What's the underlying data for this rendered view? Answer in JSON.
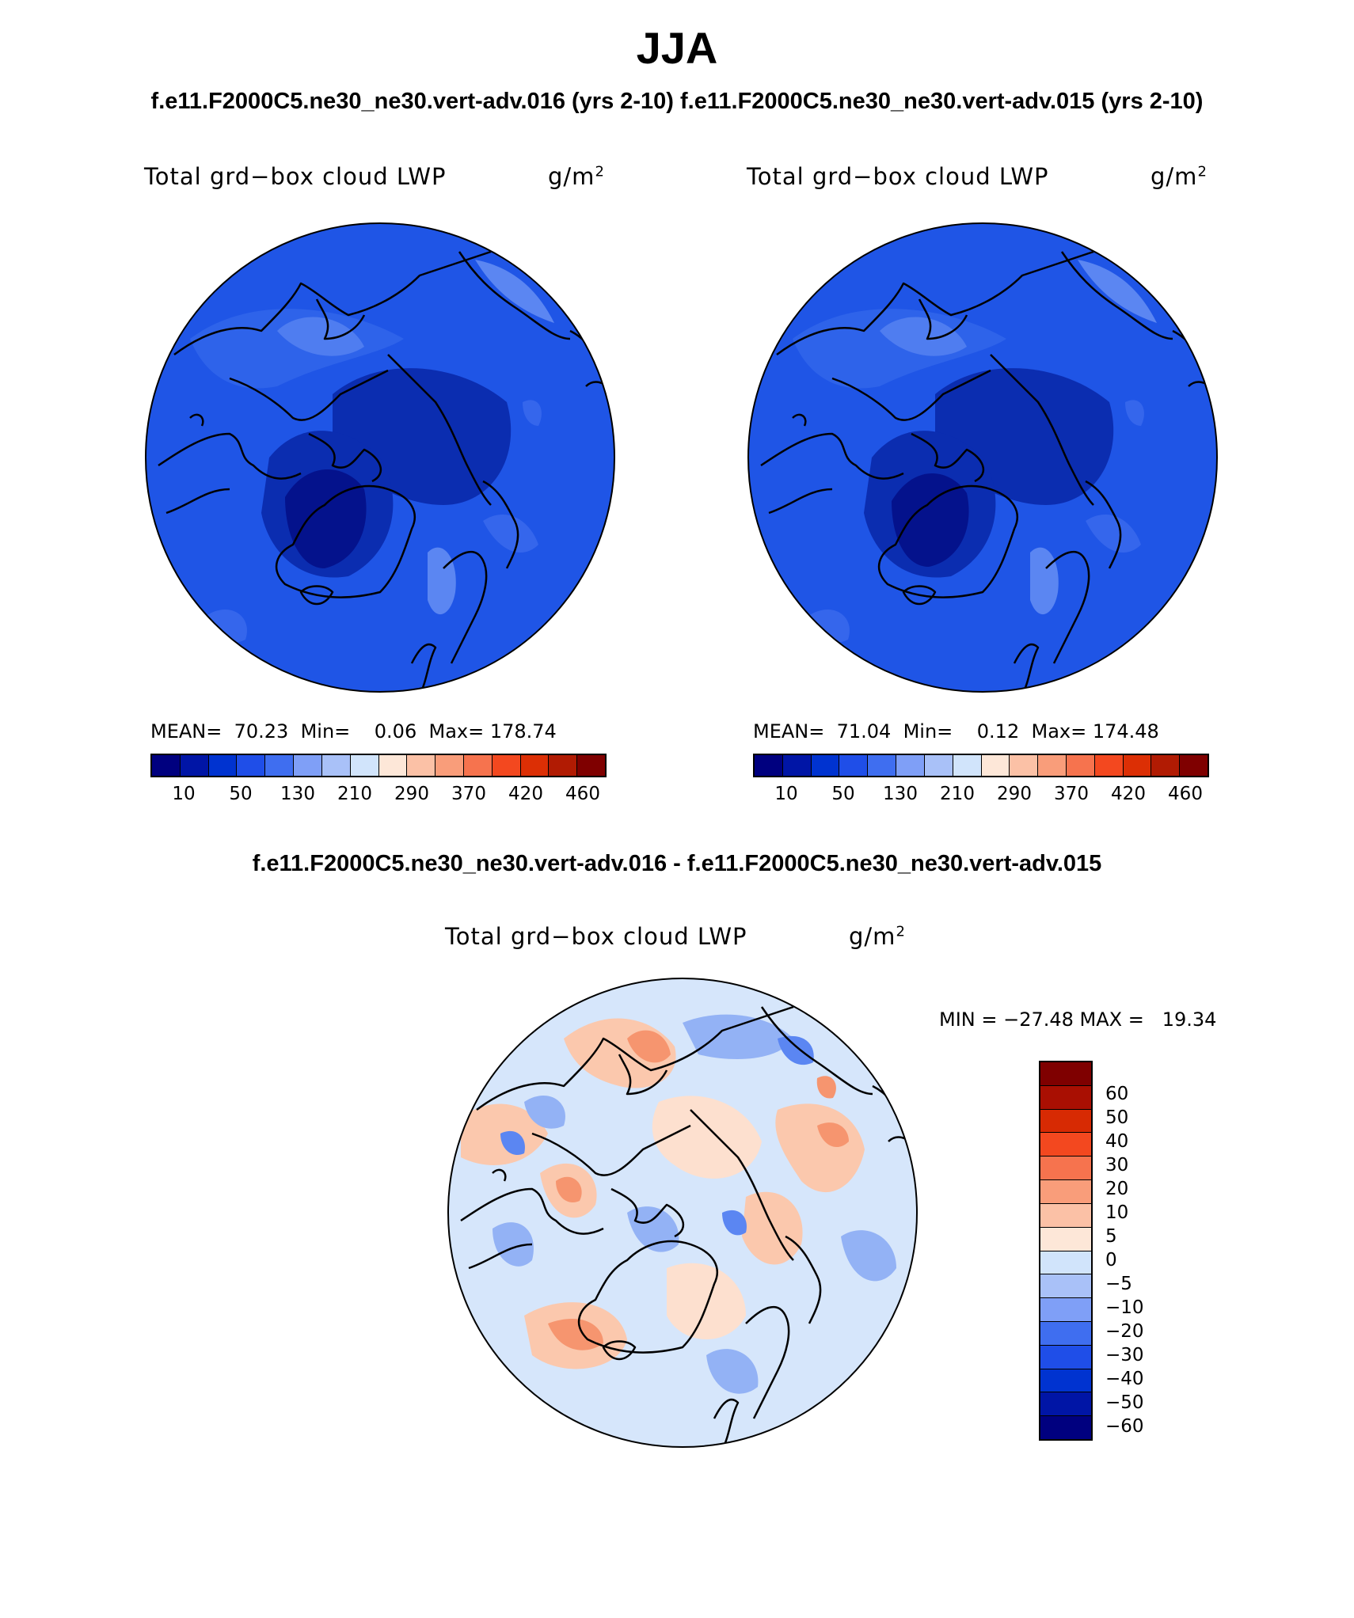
{
  "title": "JJA",
  "subtitle": "f.e11.F2000C5.ne30_ne30.vert-adv.016 (yrs 2-10)  f.e11.F2000C5.ne30_ne30.vert-adv.015 (yrs 2-10)",
  "diff_title": "f.e11.F2000C5.ne30_ne30.vert-adv.016 - f.e11.F2000C5.ne30_ne30.vert-adv.015",
  "panels": [
    {
      "variable": "Total grd−box cloud LWP",
      "units": "g/m",
      "units_exp": "2",
      "stats": "MEAN=  70.23  Min=    0.06  Max= 178.74"
    },
    {
      "variable": "Total grd−box cloud LWP",
      "units": "g/m",
      "units_exp": "2",
      "stats": "MEAN=  71.04  Min=    0.12  Max= 174.48"
    }
  ],
  "diff_panel": {
    "variable": "Total grd−box cloud LWP",
    "units": "g/m",
    "units_exp": "2",
    "stats": "MIN = −27.48 MAX =   19.34"
  },
  "colorbar": {
    "colors": [
      "#00007f",
      "#0015a6",
      "#0033d0",
      "#1f4ee8",
      "#3f6ef0",
      "#7f9ff7",
      "#a9c1f8",
      "#d1e4fb",
      "#fde7d8",
      "#fbc1a6",
      "#f99d7a",
      "#f6734e",
      "#f3481f",
      "#dc2f05",
      "#b11b03",
      "#7f0000"
    ],
    "labels": [
      "10",
      "50",
      "130",
      "210",
      "290",
      "370",
      "420",
      "460"
    ]
  },
  "diff_colorbar": {
    "colors": [
      "#7f0000",
      "#a90f02",
      "#d72a03",
      "#f3481f",
      "#f6734e",
      "#f99d7a",
      "#fbc1a6",
      "#fde7d8",
      "#d1e4fb",
      "#a9c1f8",
      "#7f9ff7",
      "#3f6ef0",
      "#1f4ee8",
      "#0033d0",
      "#0015a6",
      "#00007f"
    ],
    "labels": [
      "60",
      "50",
      "40",
      "30",
      "20",
      "10",
      "5",
      "0",
      "−5",
      "−10",
      "−20",
      "−30",
      "−40",
      "−50",
      "−60"
    ]
  },
  "colors": {
    "ocean_base": "#1f55e6",
    "deep": "#0b2db0",
    "deepest": "#04128c",
    "light": "#5b86f2",
    "diff_base": "#d6e6fb",
    "diff_pos": "#fbc8ad",
    "diff_pos2": "#f6956f",
    "diff_neg": "#93b2f5",
    "diff_neg2": "#5b86f2"
  }
}
